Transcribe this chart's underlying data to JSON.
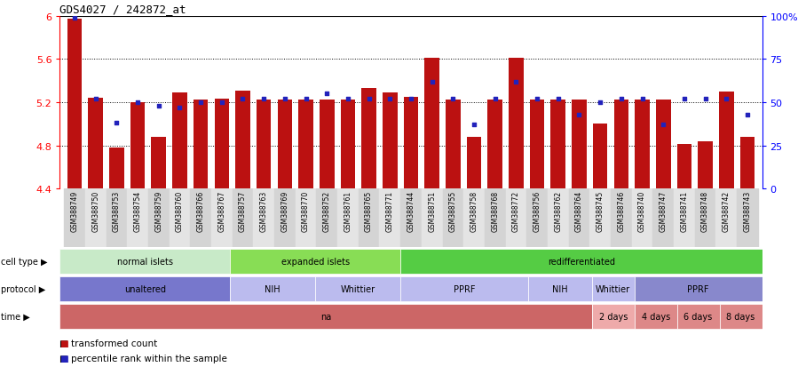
{
  "title": "GDS4027 / 242872_at",
  "samples": [
    "GSM388749",
    "GSM388750",
    "GSM388753",
    "GSM388754",
    "GSM388759",
    "GSM388760",
    "GSM388766",
    "GSM388767",
    "GSM388757",
    "GSM388763",
    "GSM388769",
    "GSM388770",
    "GSM388752",
    "GSM388761",
    "GSM388765",
    "GSM388771",
    "GSM388744",
    "GSM388751",
    "GSM388755",
    "GSM388758",
    "GSM388768",
    "GSM388772",
    "GSM388756",
    "GSM388762",
    "GSM388764",
    "GSM388745",
    "GSM388746",
    "GSM388740",
    "GSM388747",
    "GSM388741",
    "GSM388748",
    "GSM388742",
    "GSM388743"
  ],
  "bar_values": [
    5.97,
    5.24,
    4.78,
    5.2,
    4.88,
    5.29,
    5.22,
    5.23,
    5.31,
    5.22,
    5.22,
    5.22,
    5.22,
    5.22,
    5.33,
    5.29,
    5.25,
    5.61,
    5.22,
    4.88,
    5.22,
    5.61,
    5.22,
    5.22,
    5.22,
    5.0,
    5.22,
    5.22,
    5.22,
    4.81,
    4.84,
    5.3,
    4.88
  ],
  "percentile_values": [
    99,
    52,
    38,
    50,
    48,
    47,
    50,
    50,
    52,
    52,
    52,
    52,
    55,
    52,
    52,
    52,
    52,
    62,
    52,
    37,
    52,
    62,
    52,
    52,
    43,
    50,
    52,
    52,
    37,
    52,
    52,
    52,
    43
  ],
  "ylim_left": [
    4.4,
    6.0
  ],
  "ylim_right": [
    0,
    100
  ],
  "yticks_left": [
    4.4,
    4.8,
    5.2,
    5.6,
    6.0
  ],
  "ytick_labels_left": [
    "4.4",
    "4.8",
    "5.2",
    "5.6",
    "6"
  ],
  "yticks_right": [
    0,
    25,
    50,
    75,
    100
  ],
  "ytick_labels_right": [
    "0",
    "25",
    "50",
    "75",
    "100%"
  ],
  "bar_color": "#bb1111",
  "dot_color": "#2222bb",
  "cell_type_groups": [
    {
      "label": "normal islets",
      "start": 0,
      "end": 8,
      "color": "#c8eac8"
    },
    {
      "label": "expanded islets",
      "start": 8,
      "end": 16,
      "color": "#88dd55"
    },
    {
      "label": "redifferentiated",
      "start": 16,
      "end": 33,
      "color": "#55cc44"
    }
  ],
  "protocol_groups": [
    {
      "label": "unaltered",
      "start": 0,
      "end": 8,
      "color": "#7777cc"
    },
    {
      "label": "NIH",
      "start": 8,
      "end": 12,
      "color": "#bbbbee"
    },
    {
      "label": "Whittier",
      "start": 12,
      "end": 16,
      "color": "#bbbbee"
    },
    {
      "label": "PPRF",
      "start": 16,
      "end": 22,
      "color": "#bbbbee"
    },
    {
      "label": "NIH",
      "start": 22,
      "end": 25,
      "color": "#bbbbee"
    },
    {
      "label": "Whittier",
      "start": 25,
      "end": 27,
      "color": "#bbbbee"
    },
    {
      "label": "PPRF",
      "start": 27,
      "end": 33,
      "color": "#8888cc"
    }
  ],
  "time_groups": [
    {
      "label": "na",
      "start": 0,
      "end": 25,
      "color": "#cc6666"
    },
    {
      "label": "2 days",
      "start": 25,
      "end": 27,
      "color": "#eeaaaa"
    },
    {
      "label": "4 days",
      "start": 27,
      "end": 29,
      "color": "#dd8888"
    },
    {
      "label": "6 days",
      "start": 29,
      "end": 31,
      "color": "#dd8888"
    },
    {
      "label": "8 days",
      "start": 31,
      "end": 33,
      "color": "#dd8888"
    }
  ],
  "legend_bar_color": "#bb1111",
  "legend_dot_color": "#2222bb",
  "legend_bar_label": "transformed count",
  "legend_dot_label": "percentile rank within the sample",
  "bg_color": "#ffffff"
}
